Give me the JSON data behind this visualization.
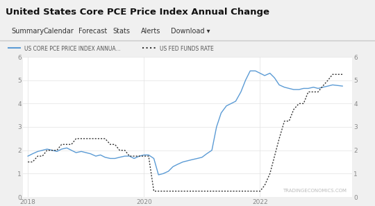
{
  "title": "United States Core PCE Price Index Annual Change",
  "nav_items": [
    "Summary",
    "Calendar",
    "Forecast",
    "Stats",
    "Alerts",
    "Download ▾"
  ],
  "legend1": "US CORE PCE PRICE INDEX ANNUA...",
  "legend2": "US FED FUNDS RATE",
  "watermark": "TRADINGECONOMICS.COM",
  "bg_color": "#f0f0f0",
  "nav_bg": "#ffffff",
  "title_bg": "#e8e8e8",
  "chart_bg": "#ffffff",
  "line1_color": "#5b9bd5",
  "line2_color": "#333333",
  "ylim": [
    0,
    6
  ],
  "yticks": [
    0,
    1,
    2,
    3,
    4,
    5,
    6
  ],
  "xlim": [
    2017.92,
    2023.58
  ],
  "xticks": [
    2018,
    2020,
    2022
  ],
  "pce_x": [
    2018.0,
    2018.08,
    2018.17,
    2018.25,
    2018.33,
    2018.42,
    2018.5,
    2018.58,
    2018.67,
    2018.75,
    2018.83,
    2018.92,
    2019.0,
    2019.08,
    2019.17,
    2019.25,
    2019.33,
    2019.42,
    2019.5,
    2019.58,
    2019.67,
    2019.75,
    2019.83,
    2019.92,
    2020.0,
    2020.08,
    2020.17,
    2020.25,
    2020.33,
    2020.42,
    2020.5,
    2020.58,
    2020.67,
    2020.75,
    2020.83,
    2020.92,
    2021.0,
    2021.08,
    2021.17,
    2021.25,
    2021.33,
    2021.42,
    2021.5,
    2021.58,
    2021.67,
    2021.75,
    2021.83,
    2021.92,
    2022.0,
    2022.08,
    2022.17,
    2022.25,
    2022.33,
    2022.42,
    2022.5,
    2022.58,
    2022.67,
    2022.75,
    2022.83,
    2022.92,
    2023.0,
    2023.08,
    2023.17,
    2023.25,
    2023.42
  ],
  "pce_y": [
    1.75,
    1.85,
    1.95,
    2.0,
    2.05,
    2.0,
    1.95,
    2.05,
    2.1,
    2.0,
    1.9,
    1.95,
    1.9,
    1.85,
    1.75,
    1.8,
    1.7,
    1.65,
    1.65,
    1.7,
    1.75,
    1.75,
    1.65,
    1.75,
    1.8,
    1.8,
    1.65,
    0.95,
    1.0,
    1.1,
    1.3,
    1.4,
    1.5,
    1.55,
    1.6,
    1.65,
    1.7,
    1.85,
    2.0,
    3.0,
    3.6,
    3.9,
    4.0,
    4.1,
    4.5,
    5.0,
    5.4,
    5.4,
    5.3,
    5.2,
    5.3,
    5.1,
    4.8,
    4.7,
    4.65,
    4.6,
    4.6,
    4.65,
    4.65,
    4.7,
    4.65,
    4.7,
    4.75,
    4.8,
    4.75
  ],
  "fed_x": [
    2018.0,
    2018.08,
    2018.17,
    2018.25,
    2018.33,
    2018.42,
    2018.5,
    2018.58,
    2018.67,
    2018.75,
    2018.83,
    2018.92,
    2019.0,
    2019.08,
    2019.17,
    2019.25,
    2019.33,
    2019.42,
    2019.5,
    2019.58,
    2019.67,
    2019.75,
    2019.83,
    2019.92,
    2020.0,
    2020.08,
    2020.17,
    2020.25,
    2020.33,
    2020.42,
    2020.5,
    2020.58,
    2020.67,
    2020.75,
    2020.83,
    2020.92,
    2021.0,
    2021.08,
    2021.17,
    2021.25,
    2021.33,
    2021.42,
    2021.5,
    2021.58,
    2021.67,
    2021.75,
    2021.83,
    2021.92,
    2022.0,
    2022.08,
    2022.17,
    2022.25,
    2022.33,
    2022.42,
    2022.5,
    2022.58,
    2022.67,
    2022.75,
    2022.83,
    2022.92,
    2023.0,
    2023.08,
    2023.17,
    2023.25,
    2023.42
  ],
  "fed_y": [
    1.5,
    1.5,
    1.75,
    1.75,
    2.0,
    2.0,
    2.0,
    2.25,
    2.25,
    2.25,
    2.5,
    2.5,
    2.5,
    2.5,
    2.5,
    2.5,
    2.5,
    2.25,
    2.25,
    2.0,
    2.0,
    1.75,
    1.75,
    1.75,
    1.75,
    1.75,
    0.25,
    0.25,
    0.25,
    0.25,
    0.25,
    0.25,
    0.25,
    0.25,
    0.25,
    0.25,
    0.25,
    0.25,
    0.25,
    0.25,
    0.25,
    0.25,
    0.25,
    0.25,
    0.25,
    0.25,
    0.25,
    0.25,
    0.25,
    0.5,
    1.0,
    1.75,
    2.5,
    3.25,
    3.25,
    3.75,
    4.0,
    4.0,
    4.5,
    4.5,
    4.5,
    4.75,
    5.0,
    5.25,
    5.25
  ]
}
